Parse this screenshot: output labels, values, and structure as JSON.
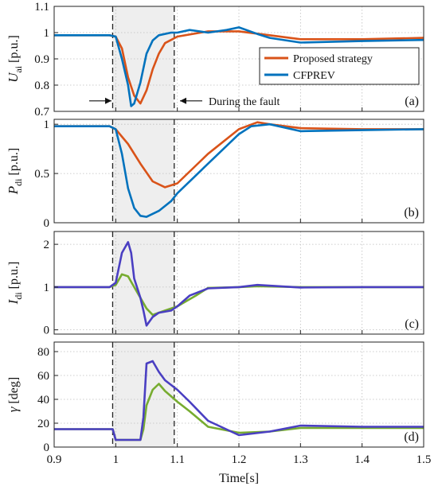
{
  "chart_data": [
    {
      "type": "line",
      "panel_label": "(a)",
      "ylabel": "U",
      "ylabel_sub": "ai",
      "ylabel_unit": "[p.u.]",
      "xlim": [
        0.9,
        1.5
      ],
      "ylim": [
        0.7,
        1.1
      ],
      "yticks": [
        0.7,
        0.8,
        0.9,
        1,
        1.1
      ],
      "fault_window": [
        0.995,
        1.095
      ],
      "annotation": "During the fault",
      "legend": {
        "placement": "inside-right",
        "entries": [
          "Proposed strategy",
          "CFPREV"
        ]
      },
      "series": [
        {
          "name": "Proposed strategy",
          "color": "#d95319",
          "x": [
            0.9,
            0.99,
            1.0,
            1.01,
            1.02,
            1.03,
            1.04,
            1.05,
            1.06,
            1.07,
            1.08,
            1.1,
            1.15,
            1.2,
            1.25,
            1.3,
            1.4,
            1.5
          ],
          "y": [
            0.99,
            0.99,
            0.985,
            0.94,
            0.83,
            0.76,
            0.73,
            0.78,
            0.86,
            0.92,
            0.96,
            0.985,
            1.005,
            1.005,
            0.99,
            0.975,
            0.975,
            0.98
          ]
        },
        {
          "name": "CFPREV",
          "color": "#0072bd",
          "x": [
            0.9,
            0.99,
            1.0,
            1.01,
            1.02,
            1.025,
            1.03,
            1.04,
            1.05,
            1.06,
            1.07,
            1.09,
            1.1,
            1.12,
            1.15,
            1.18,
            1.2,
            1.23,
            1.25,
            1.3,
            1.4,
            1.5
          ],
          "y": [
            0.99,
            0.99,
            0.985,
            0.9,
            0.8,
            0.72,
            0.73,
            0.81,
            0.92,
            0.97,
            0.99,
            1.0,
            1.0,
            1.01,
            1.0,
            1.01,
            1.02,
            0.995,
            0.98,
            0.962,
            0.968,
            0.972
          ]
        }
      ]
    },
    {
      "type": "line",
      "panel_label": "(b)",
      "ylabel": "P",
      "ylabel_sub": "di",
      "ylabel_unit": "[p.u.]",
      "xlim": [
        0.9,
        1.5
      ],
      "ylim": [
        0,
        1.05
      ],
      "yticks": [
        0,
        0.5,
        1
      ],
      "fault_window": [
        0.995,
        1.095
      ],
      "series": [
        {
          "name": "Proposed strategy",
          "color": "#d95319",
          "x": [
            0.9,
            0.99,
            1.0,
            1.02,
            1.04,
            1.06,
            1.08,
            1.1,
            1.15,
            1.2,
            1.23,
            1.25,
            1.3,
            1.4,
            1.5
          ],
          "y": [
            0.98,
            0.98,
            0.95,
            0.8,
            0.6,
            0.42,
            0.36,
            0.4,
            0.7,
            0.95,
            1.02,
            1.0,
            0.96,
            0.95,
            0.95
          ]
        },
        {
          "name": "CFPREV",
          "color": "#0072bd",
          "x": [
            0.9,
            0.99,
            1.0,
            1.01,
            1.02,
            1.03,
            1.04,
            1.05,
            1.07,
            1.09,
            1.1,
            1.15,
            1.2,
            1.22,
            1.25,
            1.3,
            1.4,
            1.5
          ],
          "y": [
            0.98,
            0.98,
            0.95,
            0.7,
            0.35,
            0.15,
            0.07,
            0.06,
            0.12,
            0.22,
            0.3,
            0.6,
            0.9,
            0.98,
            1.0,
            0.93,
            0.94,
            0.95
          ]
        }
      ]
    },
    {
      "type": "line",
      "panel_label": "(c)",
      "ylabel": "I",
      "ylabel_sub": "di",
      "ylabel_unit": "[p.u.]",
      "xlim": [
        0.9,
        1.5
      ],
      "ylim": [
        -0.1,
        2.3
      ],
      "yticks": [
        0,
        1,
        2
      ],
      "fault_window": [
        0.995,
        1.095
      ],
      "series": [
        {
          "name": "Proposed strategy",
          "color": "#77ac30",
          "x": [
            0.9,
            0.99,
            1.0,
            1.01,
            1.02,
            1.03,
            1.04,
            1.05,
            1.06,
            1.08,
            1.1,
            1.13,
            1.15,
            1.2,
            1.23,
            1.3,
            1.4,
            1.5
          ],
          "y": [
            1.0,
            1.0,
            1.05,
            1.3,
            1.25,
            1.0,
            0.75,
            0.5,
            0.35,
            0.45,
            0.55,
            0.8,
            0.98,
            1.0,
            1.02,
            1.0,
            1.0,
            1.0
          ]
        },
        {
          "name": "CFPREV",
          "color": "#4a3fc2",
          "x": [
            0.9,
            0.99,
            1.0,
            1.01,
            1.02,
            1.025,
            1.03,
            1.04,
            1.045,
            1.05,
            1.06,
            1.07,
            1.09,
            1.1,
            1.12,
            1.15,
            1.2,
            1.23,
            1.3,
            1.4,
            1.5
          ],
          "y": [
            1.0,
            1.0,
            1.1,
            1.8,
            2.05,
            1.8,
            1.2,
            0.75,
            0.45,
            0.1,
            0.3,
            0.4,
            0.45,
            0.55,
            0.8,
            0.97,
            1.0,
            1.05,
            0.99,
            1.0,
            1.0
          ]
        }
      ]
    },
    {
      "type": "line",
      "panel_label": "(d)",
      "ylabel": "γ",
      "ylabel_unit": "[deg]",
      "xlim": [
        0.9,
        1.5
      ],
      "ylim": [
        0,
        88
      ],
      "yticks": [
        0,
        20,
        40,
        60,
        80
      ],
      "fault_window": [
        0.995,
        1.095
      ],
      "series": [
        {
          "name": "Proposed strategy",
          "color": "#77ac30",
          "x": [
            0.9,
            0.995,
            1.0,
            1.04,
            1.045,
            1.05,
            1.06,
            1.07,
            1.08,
            1.1,
            1.12,
            1.15,
            1.2,
            1.25,
            1.3,
            1.4,
            1.5
          ],
          "y": [
            15,
            15,
            6,
            6,
            15,
            35,
            48,
            53,
            47,
            38,
            30,
            17,
            12,
            13,
            16,
            16,
            16
          ]
        },
        {
          "name": "CFPREV",
          "color": "#4a3fc2",
          "x": [
            0.9,
            0.995,
            1.0,
            1.04,
            1.045,
            1.05,
            1.06,
            1.07,
            1.08,
            1.1,
            1.12,
            1.15,
            1.2,
            1.25,
            1.3,
            1.4,
            1.5
          ],
          "y": [
            15,
            15,
            6,
            6,
            25,
            70,
            72,
            63,
            56,
            48,
            38,
            22,
            10,
            13,
            18,
            17,
            17
          ]
        }
      ]
    }
  ],
  "x_axis": {
    "label": "Time[s]",
    "ticks": [
      0.9,
      1,
      1.1,
      1.2,
      1.3,
      1.4,
      1.5
    ],
    "tick_labels": [
      "0.9",
      "1",
      "1.1",
      "1.2",
      "1.3",
      "1.4",
      "1.5"
    ]
  }
}
